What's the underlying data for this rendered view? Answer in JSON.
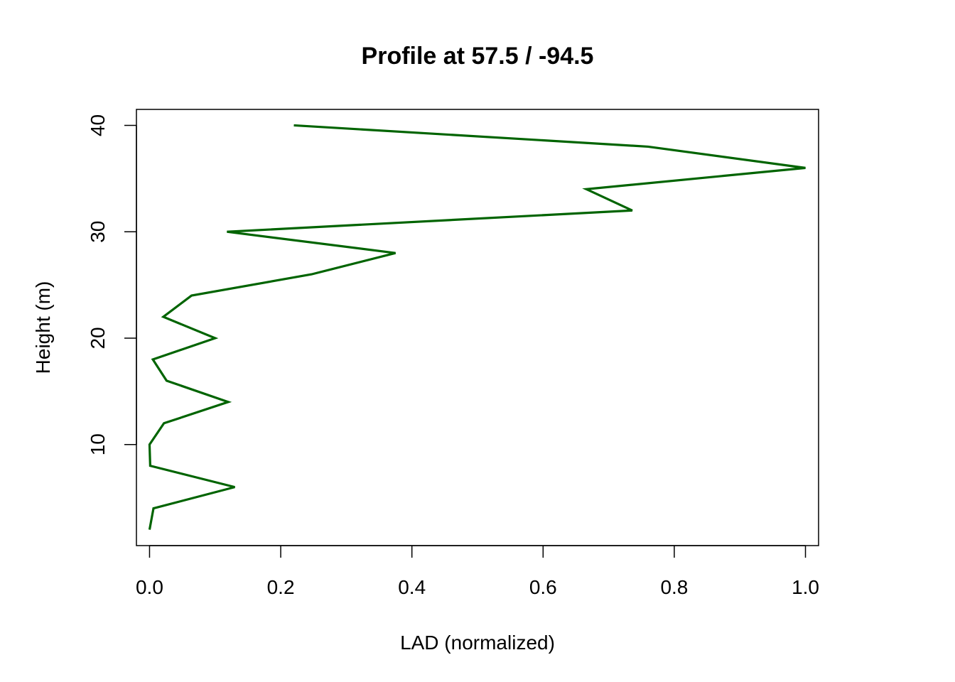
{
  "chart_data": {
    "type": "line",
    "title": "Profile at 57.5 / -94.5",
    "xlabel": "LAD (normalized)",
    "ylabel": "Height (m)",
    "xlim": [
      -0.02,
      1.02
    ],
    "ylim": [
      0.5,
      41.5
    ],
    "grid": false,
    "legend": "none",
    "x_ticks": [
      0.0,
      0.2,
      0.4,
      0.6,
      0.8,
      1.0
    ],
    "x_tick_labels": [
      "0.0",
      "0.2",
      "0.4",
      "0.6",
      "0.8",
      "1.0"
    ],
    "y_ticks": [
      10,
      20,
      30,
      40
    ],
    "y_tick_labels": [
      "10",
      "20",
      "30",
      "40"
    ],
    "series": [
      {
        "color": "#006400",
        "x": [
          0.0,
          0.006,
          0.13,
          0.001,
          0.0,
          0.022,
          0.12,
          0.026,
          0.005,
          0.1,
          0.021,
          0.064,
          0.247,
          0.375,
          0.118,
          0.736,
          0.666,
          1.0,
          0.76,
          0.22
        ],
        "y": [
          2,
          4,
          6,
          8,
          10,
          12,
          14,
          16,
          18,
          20,
          22,
          24,
          26,
          28,
          30,
          32,
          34,
          36,
          38,
          40
        ]
      }
    ]
  }
}
